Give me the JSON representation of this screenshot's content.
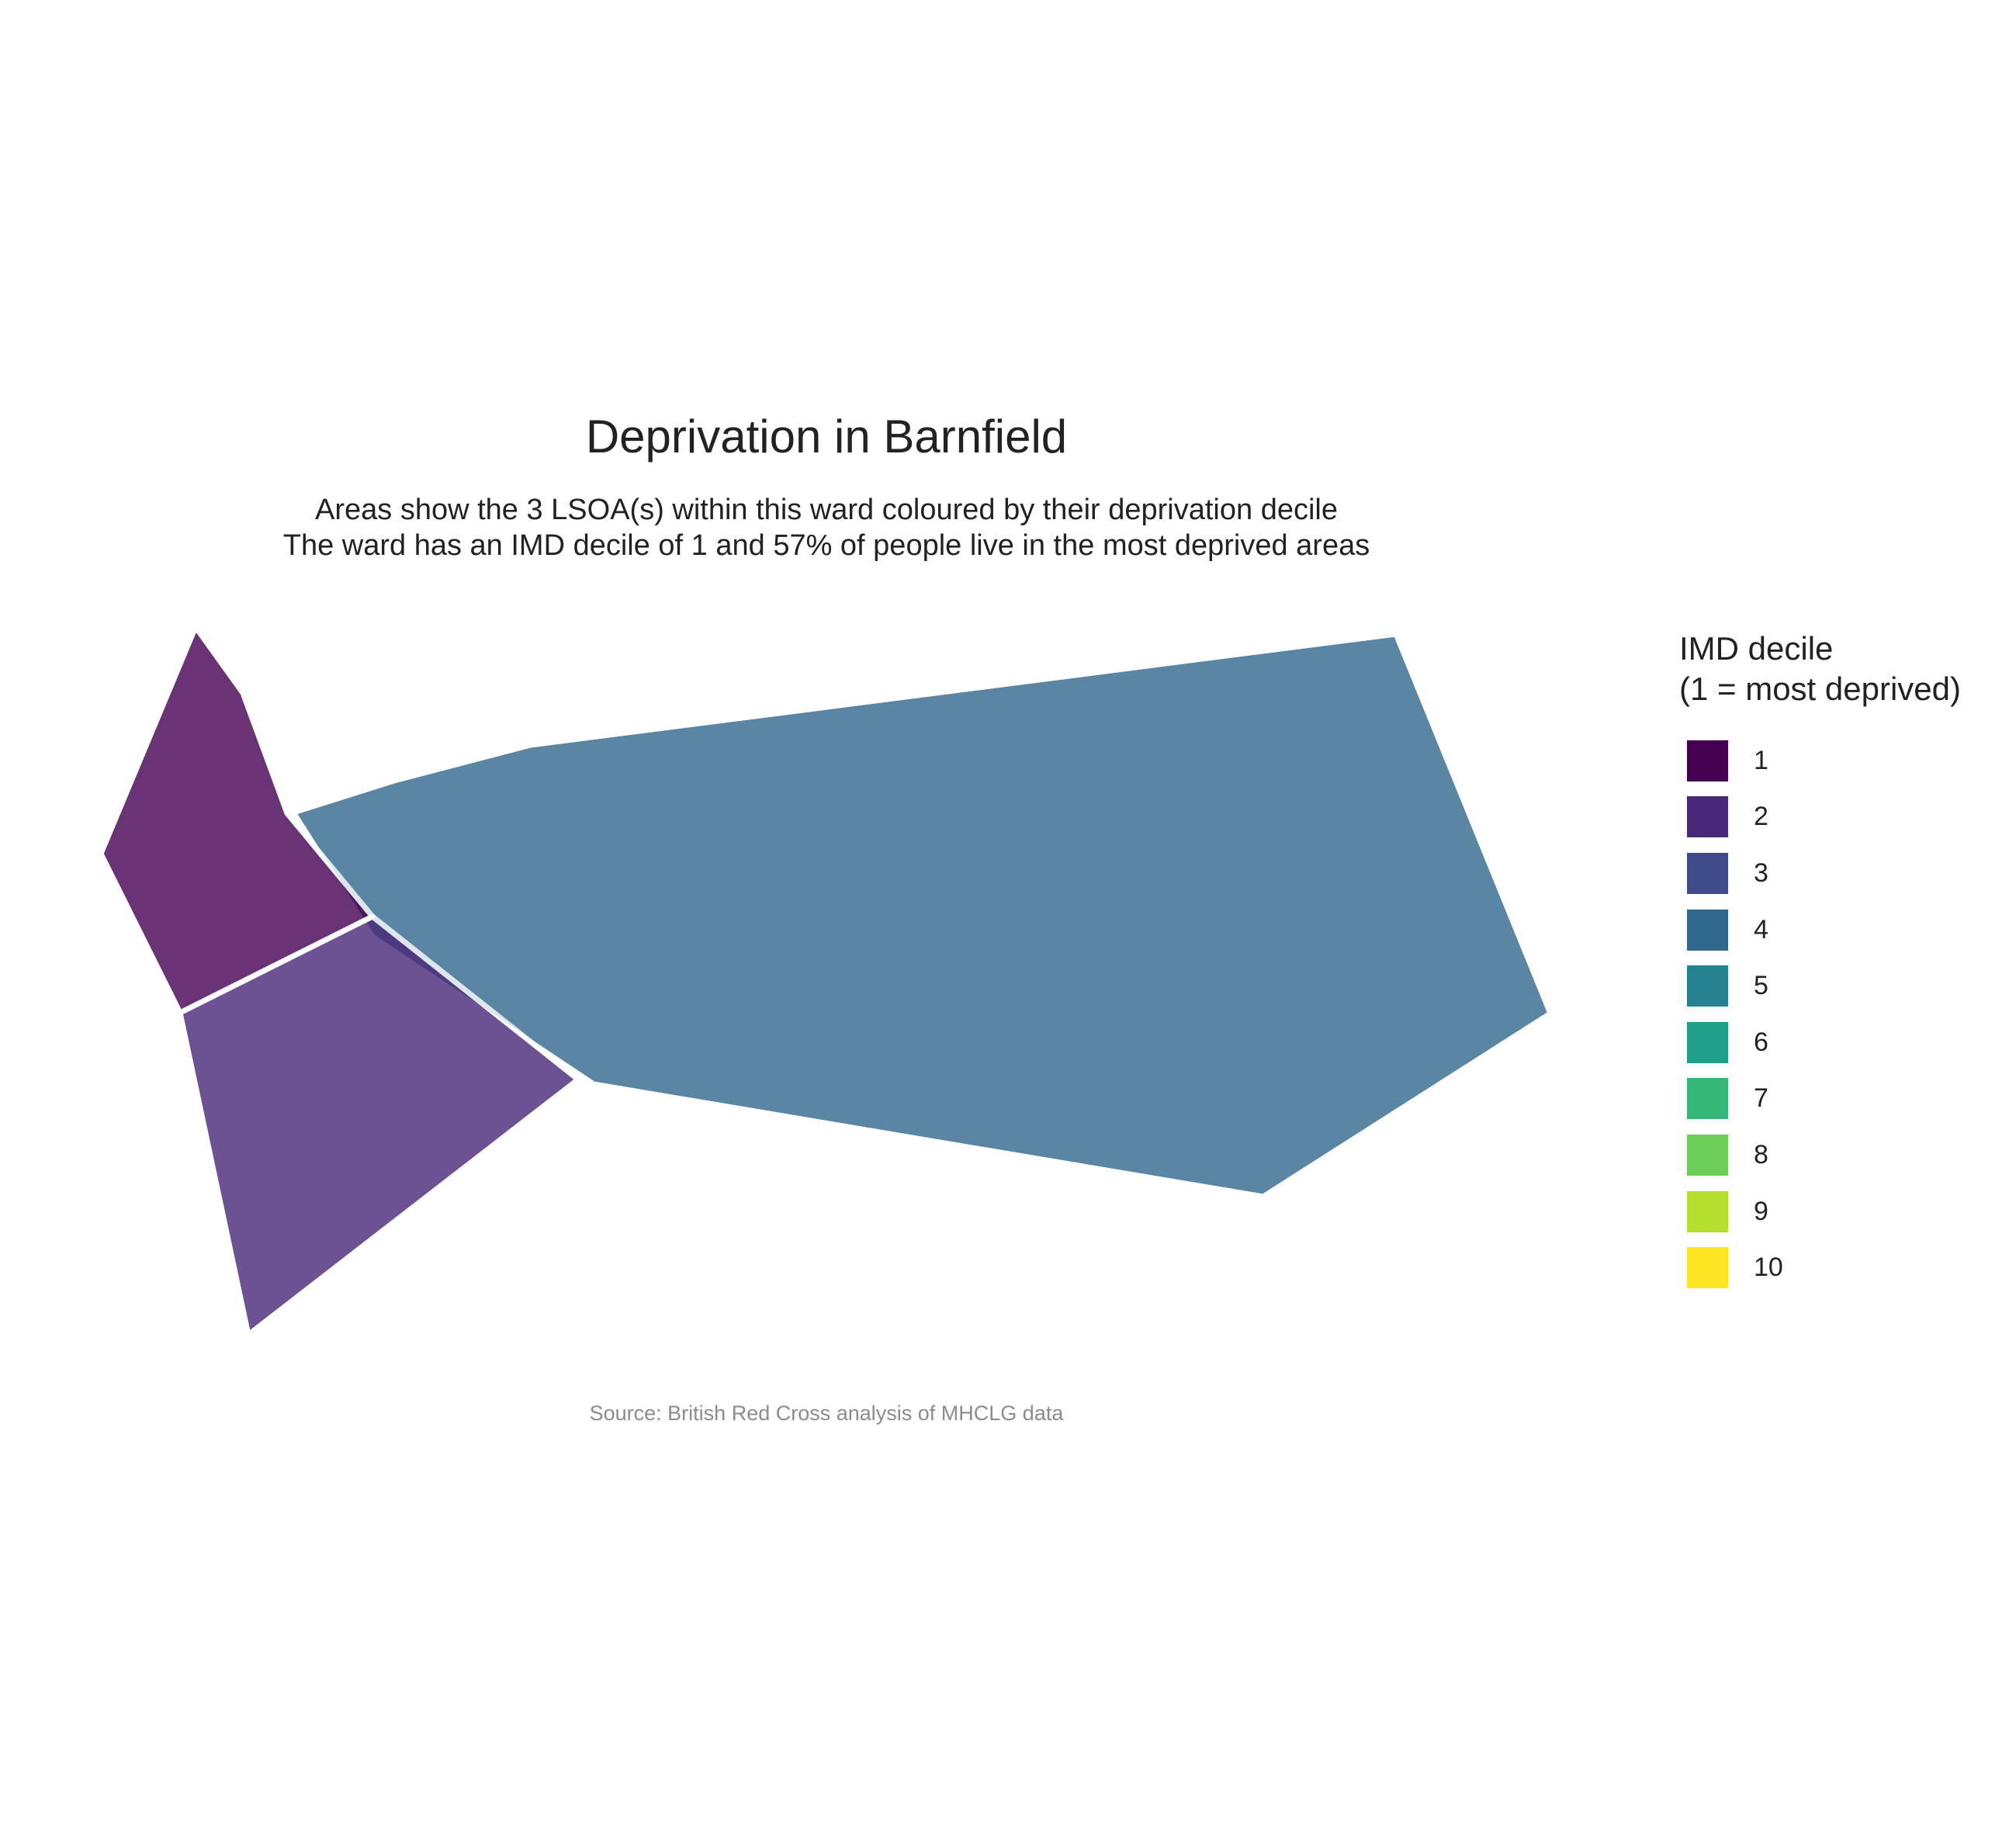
{
  "title": "Deprivation in Barnfield",
  "subtitle_line1": "Areas show the 3 LSOA(s) within this ward coloured by their deprivation decile",
  "subtitle_line2": "The ward has an IMD decile of 1 and 57% of people live in the most deprived areas",
  "caption": "Source: British Red Cross analysis of MHCLG data",
  "legend": {
    "title_line1": "IMD decile",
    "title_line2": "(1 = most deprived)",
    "items": [
      {
        "label": "1",
        "color": "#440154"
      },
      {
        "label": "2",
        "color": "#482878"
      },
      {
        "label": "3",
        "color": "#3E4A89"
      },
      {
        "label": "4",
        "color": "#31688E"
      },
      {
        "label": "5",
        "color": "#26828E"
      },
      {
        "label": "6",
        "color": "#1F9E89"
      },
      {
        "label": "7",
        "color": "#35B779"
      },
      {
        "label": "8",
        "color": "#6DCD59"
      },
      {
        "label": "9",
        "color": "#B4DE2C"
      },
      {
        "label": "10",
        "color": "#FDE725"
      }
    ]
  },
  "areas": [
    {
      "id": "lsoa-decile-1",
      "decile": 1
    },
    {
      "id": "lsoa-decile-2",
      "decile": 2
    },
    {
      "id": "lsoa-decile-4",
      "decile": 4
    }
  ]
}
